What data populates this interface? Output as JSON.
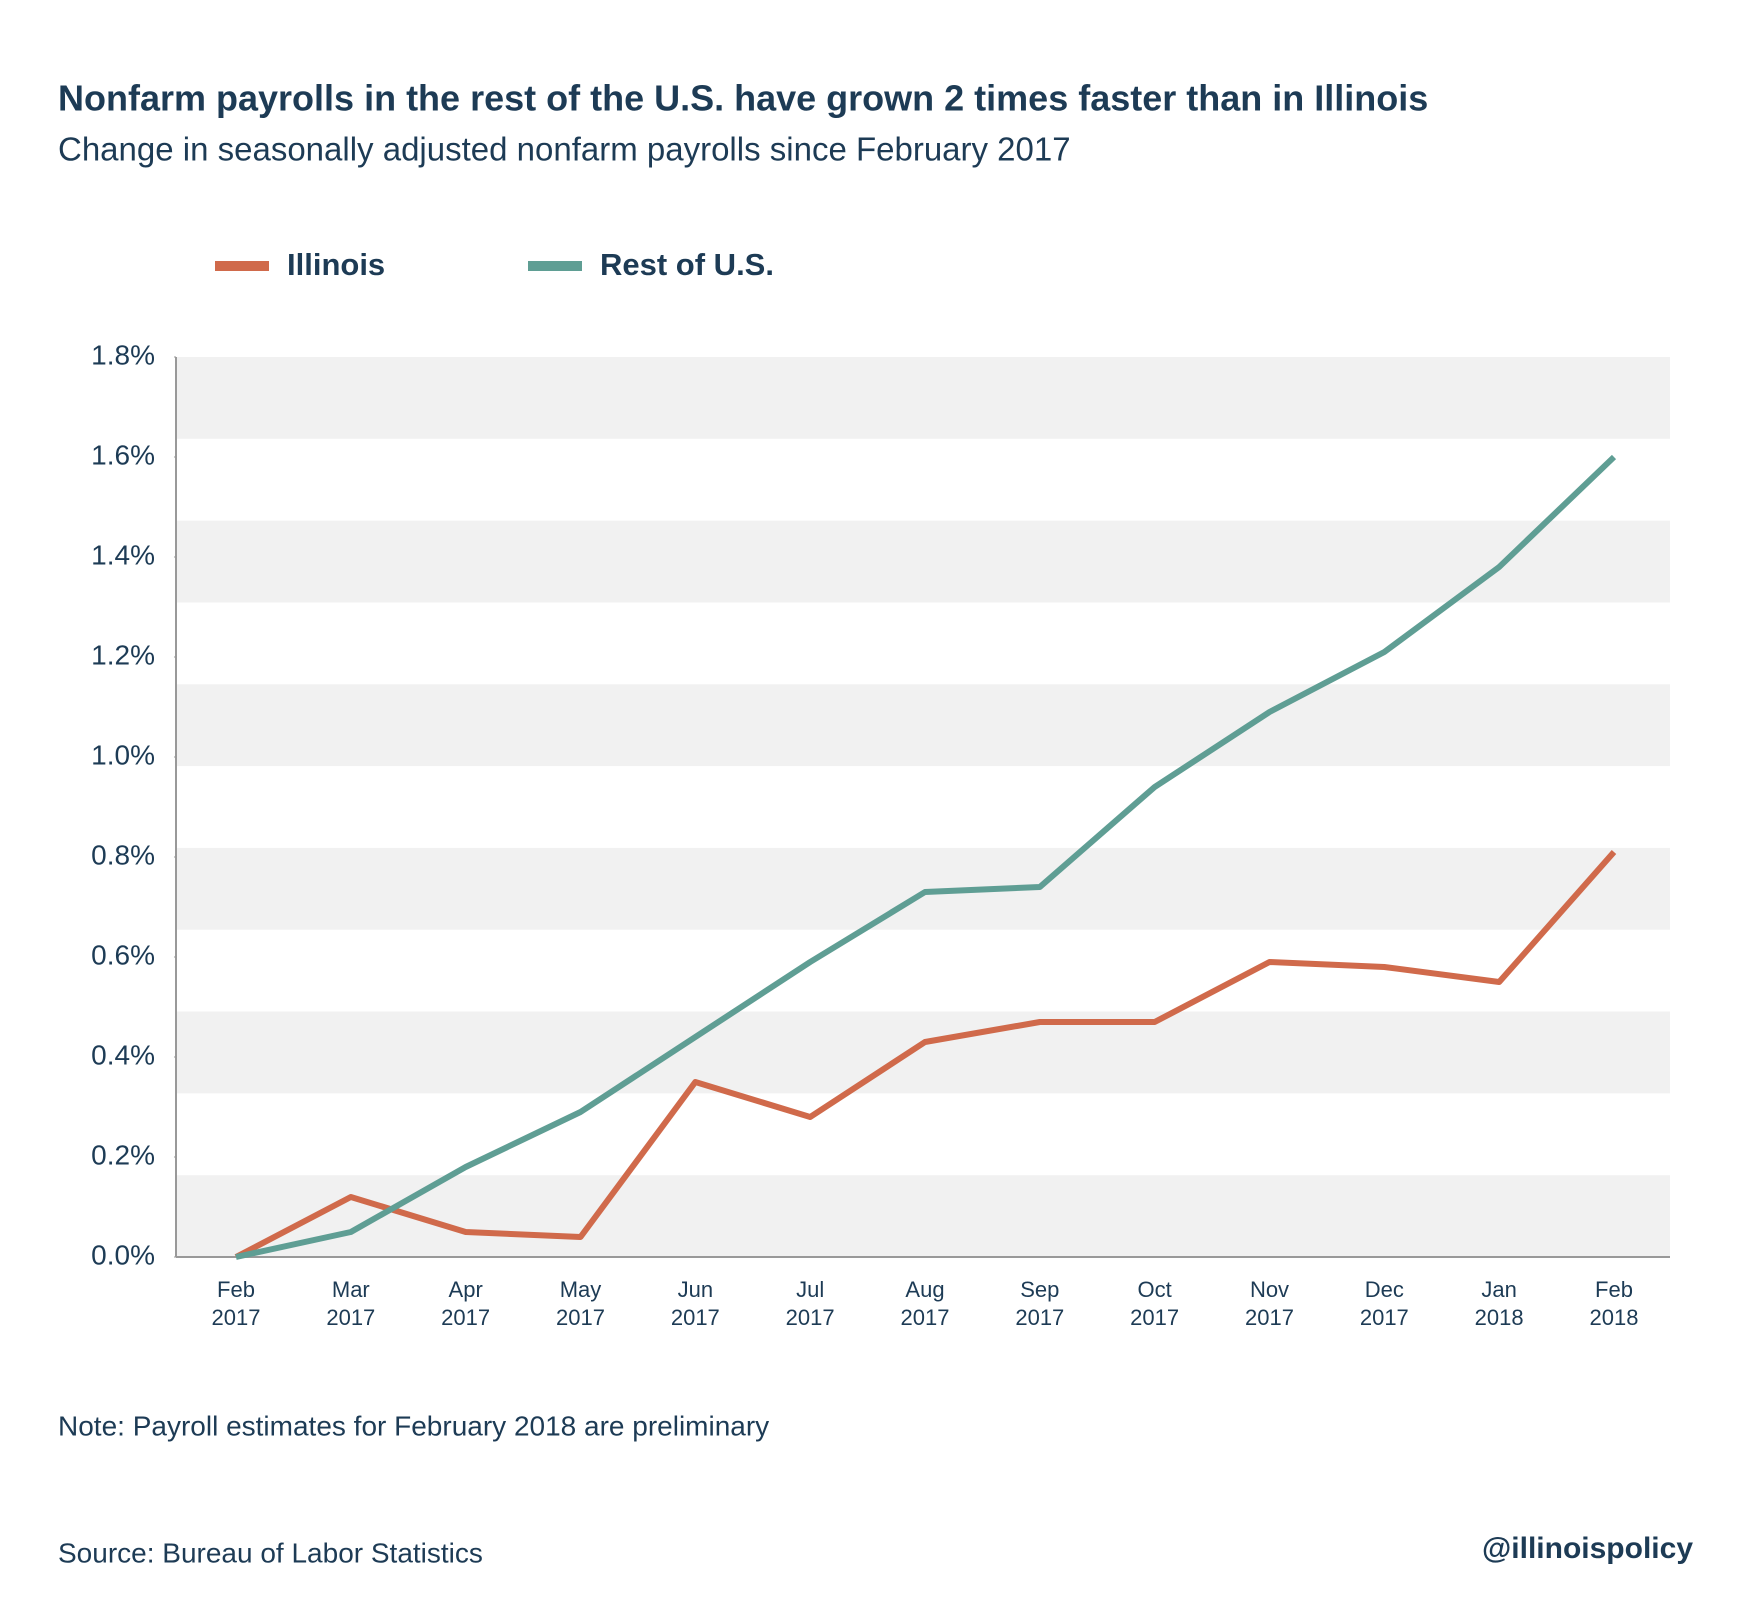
{
  "chart_data": {
    "type": "line",
    "title": "Nonfarm payrolls in the rest of the U.S. have grown 2 times faster than in Illinois",
    "subtitle": "Change in seasonally adjusted nonfarm payrolls since February 2017",
    "categories": [
      "Feb 2017",
      "Mar 2017",
      "Apr 2017",
      "May 2017",
      "Jun 2017",
      "Jul 2017",
      "Aug 2017",
      "Sep 2017",
      "Oct 2017",
      "Nov 2017",
      "Dec 2017",
      "Jan 2018",
      "Feb 2018"
    ],
    "series": [
      {
        "name": "Illinois",
        "color": "#d06a4b",
        "values": [
          0,
          0.12,
          0.05,
          0.04,
          0.35,
          0.28,
          0.43,
          0.47,
          0.47,
          0.59,
          0.58,
          0.55,
          0.81
        ]
      },
      {
        "name": "Rest of U.S.",
        "color": "#5f9e94",
        "values": [
          0,
          0.05,
          0.18,
          0.29,
          0.44,
          0.59,
          0.73,
          0.74,
          0.94,
          1.09,
          1.21,
          1.38,
          1.6
        ]
      }
    ],
    "ylim": [
      0,
      1.8
    ],
    "yticks": [
      {
        "value": 0,
        "label": "0.0%"
      },
      {
        "value": 0.2,
        "label": "0.2%"
      },
      {
        "value": 0.4,
        "label": "0.4%"
      },
      {
        "value": 0.6,
        "label": "0.6%"
      },
      {
        "value": 0.8,
        "label": "0.8%"
      },
      {
        "value": 1.0,
        "label": "1.0%"
      },
      {
        "value": 1.2,
        "label": "1.2%"
      },
      {
        "value": 1.4,
        "label": "1.4%"
      },
      {
        "value": 1.6,
        "label": "1.6%"
      },
      {
        "value": 1.8,
        "label": "1.8%"
      }
    ],
    "note": "Note: Payroll estimates for February 2018 are preliminary",
    "source": "Source: Bureau of Labor Statistics",
    "credit": "@illinoispolicy"
  }
}
